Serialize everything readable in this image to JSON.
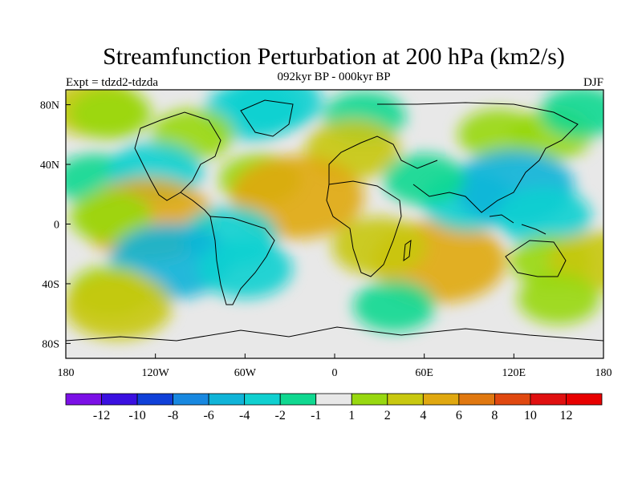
{
  "chart_data": {
    "type": "heatmap",
    "title": "Streamfunction Perturbation at 200 hPa (km2/s)",
    "subtitle_left": "Expt = tdzd2-tdzda",
    "subtitle_center": "092kyr BP - 000kyr BP",
    "subtitle_right": "DJF",
    "x_range": [
      -180,
      180
    ],
    "y_range": [
      -90,
      90
    ],
    "x_ticks": [
      {
        "value": -180,
        "label": "180"
      },
      {
        "value": -120,
        "label": "120W"
      },
      {
        "value": -60,
        "label": "60W"
      },
      {
        "value": 0,
        "label": "0"
      },
      {
        "value": 60,
        "label": "60E"
      },
      {
        "value": 120,
        "label": "120E"
      },
      {
        "value": 180,
        "label": "180"
      }
    ],
    "y_ticks": [
      {
        "value": 80,
        "label": "80N"
      },
      {
        "value": 40,
        "label": "40N"
      },
      {
        "value": 0,
        "label": "0"
      },
      {
        "value": -40,
        "label": "40S"
      },
      {
        "value": -80,
        "label": "80S"
      }
    ],
    "colorbar": {
      "levels": [
        "-12",
        "-10",
        "-8",
        "-6",
        "-4",
        "-2",
        "-1",
        "1",
        "2",
        "4",
        "6",
        "8",
        "10",
        "12"
      ],
      "colors": [
        "#7b10e6",
        "#3a10e0",
        "#1040d8",
        "#1888e0",
        "#10b4d8",
        "#10d0d0",
        "#10d890",
        "#e8e8e8",
        "#98d810",
        "#c8c810",
        "#e0a810",
        "#e07810",
        "#e04810",
        "#e01010",
        "#e80000"
      ]
    },
    "anomalies": [
      {
        "lon": -160,
        "lat": 78,
        "level": 3
      },
      {
        "lon": -150,
        "lat": 74,
        "level": 2
      },
      {
        "lon": -55,
        "lat": 76,
        "level": -3
      },
      {
        "lon": -40,
        "lat": 82,
        "level": -3
      },
      {
        "lon": -95,
        "lat": 60,
        "level": 2
      },
      {
        "lon": 20,
        "lat": 72,
        "level": -2
      },
      {
        "lon": 12,
        "lat": 50,
        "level": 3
      },
      {
        "lon": 110,
        "lat": 60,
        "level": 2
      },
      {
        "lon": 145,
        "lat": 60,
        "level": 2
      },
      {
        "lon": 165,
        "lat": 75,
        "level": -2
      },
      {
        "lon": -160,
        "lat": 30,
        "level": -2
      },
      {
        "lon": -120,
        "lat": 35,
        "level": -3
      },
      {
        "lon": -50,
        "lat": 30,
        "level": 2
      },
      {
        "lon": -25,
        "lat": 18,
        "level": 6
      },
      {
        "lon": -125,
        "lat": 3,
        "level": 6
      },
      {
        "lon": -150,
        "lat": 5,
        "level": 2
      },
      {
        "lon": -70,
        "lat": -8,
        "level": -3
      },
      {
        "lon": -110,
        "lat": -25,
        "level": -5
      },
      {
        "lon": -60,
        "lat": -30,
        "level": -3
      },
      {
        "lon": -150,
        "lat": -45,
        "level": 2
      },
      {
        "lon": -145,
        "lat": -55,
        "level": 4
      },
      {
        "lon": 70,
        "lat": -25,
        "level": 6
      },
      {
        "lon": 30,
        "lat": -15,
        "level": 3
      },
      {
        "lon": 90,
        "lat": 15,
        "level": -3
      },
      {
        "lon": 120,
        "lat": 25,
        "level": -5
      },
      {
        "lon": 140,
        "lat": 5,
        "level": -3
      },
      {
        "lon": 60,
        "lat": 30,
        "level": -2
      },
      {
        "lon": 145,
        "lat": -25,
        "level": 2
      },
      {
        "lon": 175,
        "lat": -25,
        "level": 3
      },
      {
        "lon": 150,
        "lat": -50,
        "level": 2
      },
      {
        "lon": 40,
        "lat": -55,
        "level": -2
      }
    ]
  }
}
